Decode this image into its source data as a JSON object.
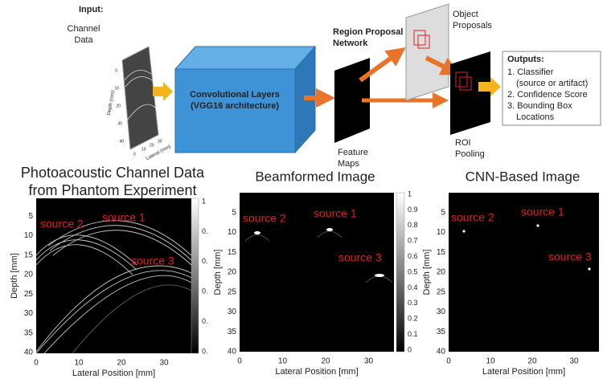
{
  "diagram": {
    "input": {
      "heading": "Input:",
      "lines": [
        "Channel",
        "Data"
      ],
      "y_label": "Depth (mm)",
      "x_label": "Lateral (mm)",
      "y_ticks": [
        "0",
        "10",
        "20",
        "30",
        "40"
      ],
      "x_ticks": [
        "0",
        "10",
        "20",
        "30"
      ]
    },
    "conv": [
      "Convolutional Layers",
      "(VGG16 architecture)"
    ],
    "rpn": [
      "Region Proposal",
      "Network"
    ],
    "feature_maps": [
      "Feature",
      "Maps"
    ],
    "object_proposals": [
      "Object",
      "Proposals"
    ],
    "roi_pooling": [
      "ROI",
      "Pooling"
    ],
    "outputs": {
      "heading": "Outputs:",
      "lines": [
        "1.  Classifier",
        "(source or artifact)",
        "2.  Confidence Score",
        "3.  Bounding Box",
        "Locations"
      ]
    }
  },
  "panels": [
    {
      "title": [
        "Photoacoustic Channel Data",
        "from Phantom Experiment"
      ],
      "y_label": "Depth [mm]",
      "x_label": "Lateral Position [mm]",
      "yticks": [
        5,
        10,
        15,
        20,
        25,
        30,
        35,
        40
      ],
      "xticks": [
        0,
        10,
        20,
        30
      ],
      "labels": [
        "source 2",
        "source 1",
        "source 3"
      ],
      "colorbar": [
        "1",
        "0.",
        "0.",
        "0.",
        "0.",
        "0."
      ]
    },
    {
      "title": [
        "Beamformed Image"
      ],
      "y_label": "Depth [mm]",
      "x_label": "Lateral Position [mm]",
      "yticks": [
        5,
        10,
        15,
        20,
        25,
        30,
        35,
        40
      ],
      "xticks": [
        0,
        10,
        20,
        30
      ],
      "labels": [
        "source 2",
        "source 1",
        "source 3"
      ],
      "colorbar": [
        "1",
        "0.9",
        "0.8",
        "0.7",
        "0.6",
        "0.5",
        "0.4",
        "0.3",
        "0.2",
        "0.1",
        "0"
      ]
    },
    {
      "title": [
        "CNN-Based Image"
      ],
      "y_label": "Depth [mm]",
      "x_label": "Lateral Position [mm]",
      "yticks": [
        5,
        10,
        15,
        20,
        25,
        30,
        35,
        40
      ],
      "xticks": [
        0,
        10,
        20,
        30
      ],
      "labels": [
        "source 2",
        "source 1",
        "source 3"
      ]
    }
  ]
}
